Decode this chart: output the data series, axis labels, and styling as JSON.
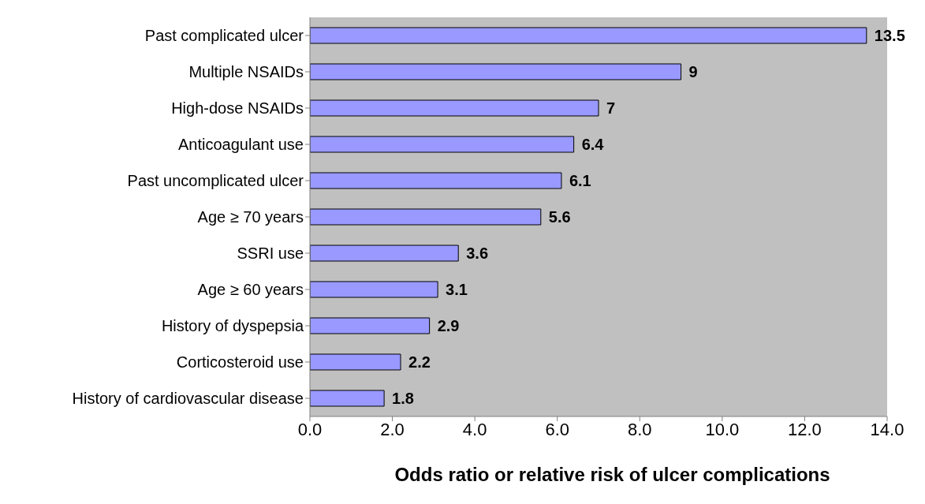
{
  "chart_data": {
    "type": "bar",
    "orientation": "horizontal",
    "xlabel": "Odds ratio or relative risk of ulcer complications",
    "categories": [
      "Past complicated ulcer",
      "Multiple NSAIDs",
      "High-dose NSAIDs",
      "Anticoagulant use",
      "Past uncomplicated ulcer",
      "Age ≥ 70 years",
      "SSRI use",
      "Age ≥ 60 years",
      "History of dyspepsia",
      "Corticosteroid use",
      "History of cardiovascular disease"
    ],
    "values": [
      13.5,
      9,
      7,
      6.4,
      6.1,
      5.6,
      3.6,
      3.1,
      2.9,
      2.2,
      1.8
    ],
    "color": "#9999ff",
    "xlim": [
      0,
      14
    ],
    "xticks": [
      {
        "value": 0,
        "label": "0.0"
      },
      {
        "value": 2,
        "label": "2.0"
      },
      {
        "value": 4,
        "label": "4.0"
      },
      {
        "value": 6,
        "label": "6.0"
      },
      {
        "value": 8,
        "label": "8.0"
      },
      {
        "value": 10,
        "label": "10.0"
      },
      {
        "value": 12,
        "label": "12.0"
      },
      {
        "value": 14,
        "label": "14.0"
      }
    ],
    "data_labels": true,
    "grid": false,
    "legend": false
  }
}
